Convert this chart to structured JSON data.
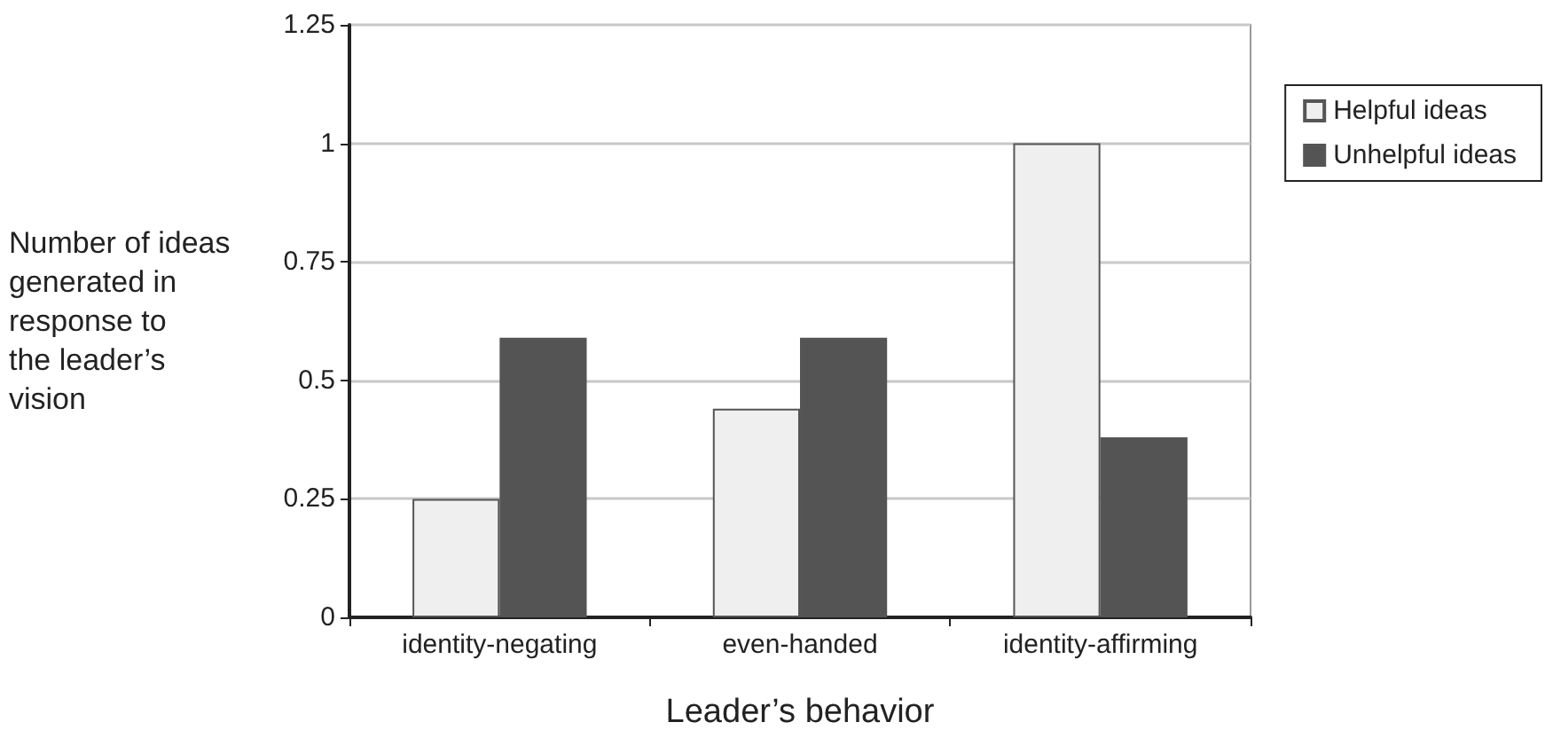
{
  "chart_data": {
    "type": "bar",
    "categories": [
      "identity-negating",
      "even-handed",
      "identity-affirming"
    ],
    "series": [
      {
        "name": "Helpful ideas",
        "color": "#efefef",
        "values": [
          0.25,
          0.44,
          1.0
        ]
      },
      {
        "name": "Unhelpful ideas",
        "color": "#545454",
        "values": [
          0.59,
          0.59,
          0.38
        ]
      }
    ],
    "xlabel": "Leader’s behavior",
    "ylabel": "Number of ideas\ngenerated in\nresponse to\nthe leader’s\nvision",
    "ylim": [
      0,
      1.25
    ],
    "yticks": [
      0,
      0.25,
      0.5,
      0.75,
      1,
      1.25
    ],
    "grid": "y",
    "legend": "top right"
  }
}
